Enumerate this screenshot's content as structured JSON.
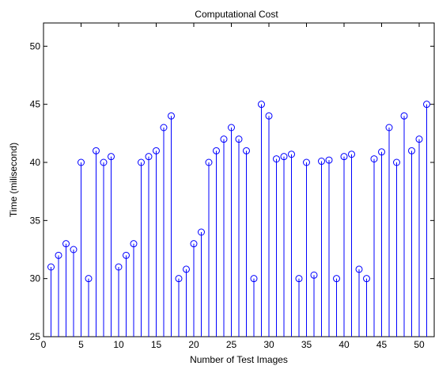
{
  "chart_data": {
    "type": "stem",
    "title": "Computational Cost",
    "xlabel": "Number of Test Images",
    "ylabel": "Time (milisecond)",
    "xlim": [
      0,
      52
    ],
    "ylim": [
      25,
      52
    ],
    "xticks": [
      0,
      5,
      10,
      15,
      20,
      25,
      30,
      35,
      40,
      45,
      50
    ],
    "yticks": [
      25,
      30,
      35,
      40,
      45,
      50
    ],
    "baseline": 25,
    "grid": false,
    "legend": "none",
    "color": "#0000ff",
    "x": [
      1,
      2,
      3,
      4,
      5,
      6,
      7,
      8,
      9,
      10,
      11,
      12,
      13,
      14,
      15,
      16,
      17,
      18,
      19,
      20,
      21,
      22,
      23,
      24,
      25,
      26,
      27,
      28,
      29,
      30,
      31,
      32,
      33,
      34,
      35,
      36,
      37,
      38,
      39,
      40,
      41,
      42,
      43,
      44,
      45,
      46,
      47,
      48,
      49,
      50,
      51
    ],
    "y": [
      31,
      32,
      33,
      32.5,
      40,
      30,
      41,
      40,
      40.5,
      31,
      32,
      33,
      40,
      40.5,
      41,
      43,
      44,
      30,
      30.8,
      33,
      34,
      40,
      41,
      42,
      43,
      42,
      41,
      30,
      45,
      44,
      40.3,
      40.5,
      40.7,
      30,
      40,
      30.3,
      40.1,
      40.2,
      30,
      40.5,
      40.7,
      30.8,
      30,
      40.3,
      40.9,
      43,
      40,
      44,
      41,
      42,
      45
    ]
  }
}
